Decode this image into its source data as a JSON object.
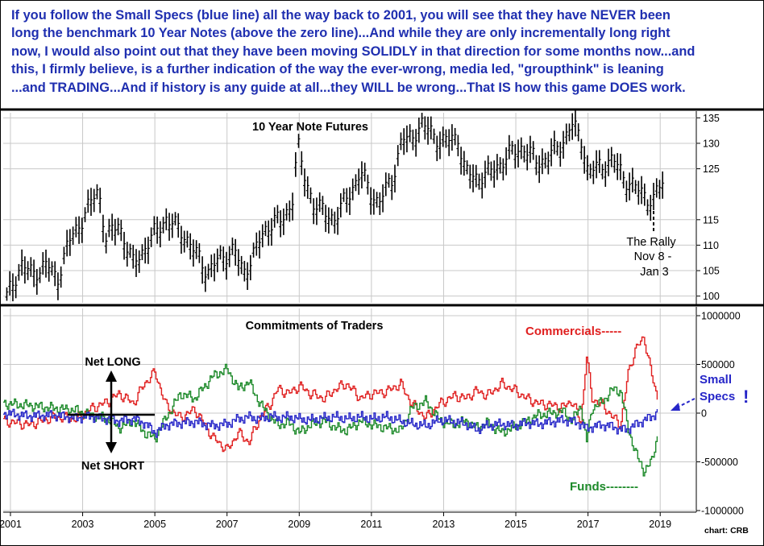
{
  "annotation_lines": [
    "If you follow the Small Specs (blue line) all the way back to 2001, you will see that they have NEVER been",
    "long the benchmark 10 Year Notes (above the zero line)...And while they are only incrementally long right",
    "now, I would also point out that they have been moving SOLIDLY in that direction for some months now...and",
    "this, I firmly believe, is a further indication of the way the ever-wrong, media led, \"groupthink\" is leaning",
    "...and TRADING...And if history is any guide at all...they WILL be wrong...That IS how this game DOES work."
  ],
  "colors": {
    "annotation": "#1f2fb0",
    "commercials": "#e02020",
    "funds": "#1d8a2a",
    "small_specs": "#2626c8",
    "price": "#000000"
  },
  "chart_data": [
    {
      "type": "ohlc",
      "title": "10 Year Note Futures",
      "x_ticks": [
        "2001",
        "2003",
        "2005",
        "2007",
        "2009",
        "2011",
        "2013",
        "2015",
        "2017",
        "2019"
      ],
      "xlim": [
        2000.8,
        2020.0
      ],
      "y_ticks": [
        "135",
        "130",
        "125",
        "115",
        "110",
        "105",
        "100"
      ],
      "y_tick_values": [
        135,
        130,
        125,
        115,
        110,
        105,
        100
      ],
      "ylim": [
        99,
        136
      ],
      "annotation": [
        "The Rally",
        "Nov 8 -",
        "Jan 3"
      ],
      "price_path": [
        [
          2000.9,
          99.5
        ],
        [
          2001.3,
          106
        ],
        [
          2001.6,
          104
        ],
        [
          2002.0,
          106
        ],
        [
          2002.3,
          103
        ],
        [
          2002.6,
          110
        ],
        [
          2003.0,
          115
        ],
        [
          2003.3,
          119
        ],
        [
          2003.45,
          120.5
        ],
        [
          2003.65,
          111
        ],
        [
          2004.0,
          114
        ],
        [
          2004.4,
          106
        ],
        [
          2004.7,
          109
        ],
        [
          2005.0,
          112
        ],
        [
          2005.3,
          115
        ],
        [
          2005.8,
          112
        ],
        [
          2006.1,
          108.5
        ],
        [
          2006.45,
          104.5
        ],
        [
          2006.8,
          107
        ],
        [
          2007.2,
          109
        ],
        [
          2007.45,
          104
        ],
        [
          2007.8,
          109
        ],
        [
          2008.1,
          113
        ],
        [
          2008.3,
          115
        ],
        [
          2008.5,
          114
        ],
        [
          2008.8,
          118
        ],
        [
          2008.95,
          130
        ],
        [
          2009.1,
          124
        ],
        [
          2009.4,
          118
        ],
        [
          2009.7,
          116
        ],
        [
          2010.0,
          115
        ],
        [
          2010.4,
          120
        ],
        [
          2010.7,
          124
        ],
        [
          2011.0,
          120
        ],
        [
          2011.2,
          118
        ],
        [
          2011.6,
          123
        ],
        [
          2011.85,
          131
        ],
        [
          2012.0,
          130
        ],
        [
          2012.4,
          133.5
        ],
        [
          2012.7,
          131.5
        ],
        [
          2013.0,
          130
        ],
        [
          2013.4,
          131
        ],
        [
          2013.6,
          124
        ],
        [
          2013.9,
          123
        ],
        [
          2014.3,
          124
        ],
        [
          2014.6,
          126
        ],
        [
          2014.9,
          128
        ],
        [
          2015.2,
          129
        ],
        [
          2015.6,
          126
        ],
        [
          2015.9,
          127
        ],
        [
          2016.3,
          130
        ],
        [
          2016.55,
          133.5
        ],
        [
          2016.85,
          130
        ],
        [
          2017.0,
          124
        ],
        [
          2017.4,
          125.5
        ],
        [
          2017.7,
          126.5
        ],
        [
          2018.0,
          123
        ],
        [
          2018.3,
          121
        ],
        [
          2018.6,
          119.5
        ],
        [
          2018.8,
          118
        ],
        [
          2018.95,
          121
        ],
        [
          2019.1,
          122
        ]
      ]
    },
    {
      "type": "line",
      "title": "Commitments of Traders",
      "x_ticks": [
        "2001",
        "2003",
        "2005",
        "2007",
        "2009",
        "2011",
        "2013",
        "2015",
        "2017",
        "2019"
      ],
      "xlim": [
        2000.8,
        2020.0
      ],
      "y_ticks": [
        "1000000",
        "500000",
        "0",
        "-500000",
        "-1000000"
      ],
      "y_tick_values": [
        1000000,
        500000,
        0,
        -500000,
        -1000000
      ],
      "ylim": [
        -1000000,
        1000000
      ],
      "labels": {
        "net_long": "Net LONG",
        "net_short": "Net SHORT",
        "commercials": "Commercials-----",
        "small_specs": [
          "Small",
          "Specs"
        ],
        "small_specs_mark": "!",
        "funds": "Funds--------",
        "credit": "chart: CRB"
      },
      "series": [
        {
          "name": "Commercials",
          "color": "#e02020",
          "points": [
            [
              2000.8,
              -80000
            ],
            [
              2001.5,
              -120000
            ],
            [
              2002.2,
              -40000
            ],
            [
              2002.8,
              -60000
            ],
            [
              2003.2,
              40000
            ],
            [
              2003.7,
              120000
            ],
            [
              2004.0,
              200000
            ],
            [
              2004.4,
              100000
            ],
            [
              2004.7,
              300000
            ],
            [
              2005.0,
              420000
            ],
            [
              2005.3,
              80000
            ],
            [
              2005.7,
              -50000
            ],
            [
              2006.1,
              40000
            ],
            [
              2006.6,
              -250000
            ],
            [
              2007.0,
              -380000
            ],
            [
              2007.3,
              -200000
            ],
            [
              2007.6,
              -300000
            ],
            [
              2007.9,
              -50000
            ],
            [
              2008.2,
              100000
            ],
            [
              2008.4,
              250000
            ],
            [
              2008.7,
              200000
            ],
            [
              2009.0,
              280000
            ],
            [
              2009.3,
              200000
            ],
            [
              2009.7,
              150000
            ],
            [
              2010.0,
              250000
            ],
            [
              2010.3,
              300000
            ],
            [
              2010.7,
              150000
            ],
            [
              2011.0,
              200000
            ],
            [
              2011.4,
              220000
            ],
            [
              2011.8,
              300000
            ],
            [
              2012.1,
              100000
            ],
            [
              2012.5,
              -50000
            ],
            [
              2012.9,
              100000
            ],
            [
              2013.3,
              180000
            ],
            [
              2013.6,
              150000
            ],
            [
              2013.9,
              230000
            ],
            [
              2014.2,
              180000
            ],
            [
              2014.6,
              300000
            ],
            [
              2014.9,
              250000
            ],
            [
              2015.3,
              150000
            ],
            [
              2015.6,
              100000
            ],
            [
              2016.0,
              80000
            ],
            [
              2016.3,
              60000
            ],
            [
              2016.55,
              130000
            ],
            [
              2016.8,
              -100000
            ],
            [
              2016.95,
              600000
            ],
            [
              2017.1,
              150000
            ],
            [
              2017.4,
              80000
            ],
            [
              2017.7,
              -50000
            ],
            [
              2017.9,
              -120000
            ],
            [
              2018.1,
              400000
            ],
            [
              2018.3,
              650000
            ],
            [
              2018.55,
              780000
            ],
            [
              2018.75,
              400000
            ],
            [
              2018.95,
              100000
            ]
          ]
        },
        {
          "name": "Funds",
          "color": "#1d8a2a",
          "points": [
            [
              2000.8,
              100000
            ],
            [
              2001.5,
              80000
            ],
            [
              2002.2,
              50000
            ],
            [
              2002.8,
              30000
            ],
            [
              2003.2,
              -20000
            ],
            [
              2003.7,
              -60000
            ],
            [
              2004.0,
              -150000
            ],
            [
              2004.4,
              -80000
            ],
            [
              2004.7,
              -200000
            ],
            [
              2005.0,
              -260000
            ],
            [
              2005.3,
              -50000
            ],
            [
              2005.7,
              200000
            ],
            [
              2006.1,
              150000
            ],
            [
              2006.6,
              380000
            ],
            [
              2007.0,
              450000
            ],
            [
              2007.3,
              250000
            ],
            [
              2007.6,
              320000
            ],
            [
              2007.9,
              100000
            ],
            [
              2008.2,
              -50000
            ],
            [
              2008.4,
              -120000
            ],
            [
              2008.7,
              -100000
            ],
            [
              2009.0,
              -200000
            ],
            [
              2009.3,
              -120000
            ],
            [
              2009.7,
              -80000
            ],
            [
              2010.0,
              -150000
            ],
            [
              2010.3,
              -180000
            ],
            [
              2010.7,
              -80000
            ],
            [
              2011.0,
              -120000
            ],
            [
              2011.4,
              -150000
            ],
            [
              2011.8,
              -180000
            ],
            [
              2012.1,
              50000
            ],
            [
              2012.5,
              120000
            ],
            [
              2012.9,
              -80000
            ],
            [
              2013.3,
              -120000
            ],
            [
              2013.6,
              -80000
            ],
            [
              2013.9,
              -150000
            ],
            [
              2014.2,
              -100000
            ],
            [
              2014.6,
              -200000
            ],
            [
              2014.9,
              -150000
            ],
            [
              2015.3,
              -80000
            ],
            [
              2015.6,
              -20000
            ],
            [
              2016.0,
              0
            ],
            [
              2016.3,
              20000
            ],
            [
              2016.55,
              -80000
            ],
            [
              2016.8,
              80000
            ],
            [
              2016.95,
              -300000
            ],
            [
              2017.1,
              50000
            ],
            [
              2017.4,
              120000
            ],
            [
              2017.7,
              250000
            ],
            [
              2017.9,
              220000
            ],
            [
              2018.1,
              -150000
            ],
            [
              2018.3,
              -400000
            ],
            [
              2018.55,
              -600000
            ],
            [
              2018.75,
              -500000
            ],
            [
              2018.95,
              -180000
            ]
          ]
        },
        {
          "name": "Small Specs",
          "color": "#2626c8",
          "points": [
            [
              2000.8,
              0
            ],
            [
              2001.5,
              -30000
            ],
            [
              2002.2,
              -20000
            ],
            [
              2002.8,
              -50000
            ],
            [
              2003.2,
              -30000
            ],
            [
              2003.7,
              -60000
            ],
            [
              2004.0,
              -80000
            ],
            [
              2004.4,
              -60000
            ],
            [
              2004.7,
              -100000
            ],
            [
              2005.0,
              -200000
            ],
            [
              2005.3,
              -120000
            ],
            [
              2005.7,
              -100000
            ],
            [
              2006.1,
              -90000
            ],
            [
              2006.6,
              -130000
            ],
            [
              2007.0,
              -110000
            ],
            [
              2007.3,
              -60000
            ],
            [
              2007.6,
              -40000
            ],
            [
              2007.9,
              -60000
            ],
            [
              2008.2,
              -30000
            ],
            [
              2008.4,
              -50000
            ],
            [
              2008.7,
              -40000
            ],
            [
              2009.0,
              -60000
            ],
            [
              2009.3,
              -70000
            ],
            [
              2009.7,
              -50000
            ],
            [
              2010.0,
              -40000
            ],
            [
              2010.3,
              -60000
            ],
            [
              2010.7,
              -40000
            ],
            [
              2011.0,
              -60000
            ],
            [
              2011.4,
              -40000
            ],
            [
              2011.8,
              -80000
            ],
            [
              2012.1,
              -110000
            ],
            [
              2012.5,
              -130000
            ],
            [
              2012.9,
              -70000
            ],
            [
              2013.3,
              -90000
            ],
            [
              2013.6,
              -110000
            ],
            [
              2013.9,
              -170000
            ],
            [
              2014.2,
              -130000
            ],
            [
              2014.6,
              -110000
            ],
            [
              2014.9,
              -130000
            ],
            [
              2015.3,
              -100000
            ],
            [
              2015.6,
              -110000
            ],
            [
              2016.0,
              -90000
            ],
            [
              2016.3,
              -70000
            ],
            [
              2016.55,
              -80000
            ],
            [
              2016.8,
              -110000
            ],
            [
              2016.95,
              -160000
            ],
            [
              2017.1,
              -140000
            ],
            [
              2017.4,
              -120000
            ],
            [
              2017.7,
              -140000
            ],
            [
              2017.9,
              -170000
            ],
            [
              2018.1,
              -160000
            ],
            [
              2018.3,
              -120000
            ],
            [
              2018.55,
              -70000
            ],
            [
              2018.75,
              -40000
            ],
            [
              2018.95,
              30000
            ]
          ]
        }
      ]
    }
  ]
}
